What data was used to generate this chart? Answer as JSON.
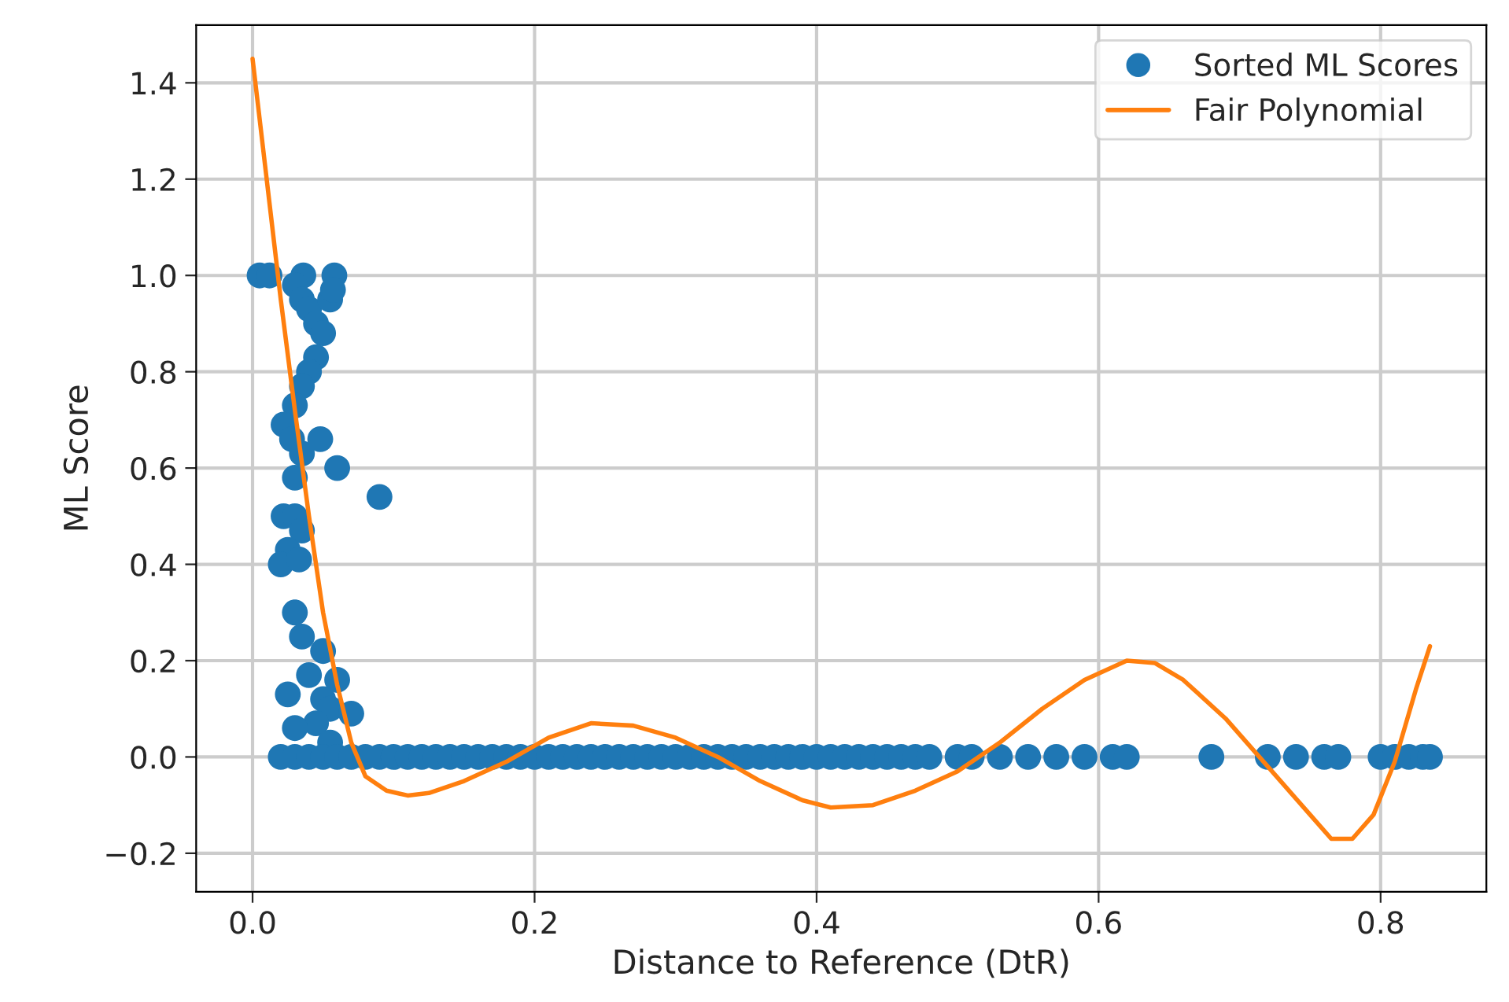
{
  "chart_data": {
    "type": "scatter",
    "xlabel": "Distance to Reference (DtR)",
    "ylabel": "ML Score",
    "xlim": [
      -0.04,
      0.875
    ],
    "ylim": [
      -0.28,
      1.52
    ],
    "xticks": [
      {
        "value": 0,
        "label": "0.0"
      },
      0.2,
      0.4,
      0.6,
      0.8
    ],
    "yticks": [
      {
        "value": -0.2,
        "label": "−0.2"
      },
      {
        "value": 0,
        "label": "0.0"
      },
      0.2,
      0.4,
      0.6,
      0.8,
      {
        "value": 1,
        "label": "1.0"
      },
      1.2,
      1.4
    ],
    "grid": true,
    "legend": "top right",
    "series": [
      {
        "name": "Sorted ML Scores",
        "color": "#1f77b4",
        "marker": "circle",
        "x": [
          0.005,
          0.012,
          0.036,
          0.058,
          0.03,
          0.035,
          0.04,
          0.045,
          0.05,
          0.055,
          0.057,
          0.045,
          0.04,
          0.035,
          0.03,
          0.022,
          0.028,
          0.035,
          0.048,
          0.06,
          0.09,
          0.03,
          0.022,
          0.03,
          0.035,
          0.025,
          0.02,
          0.033,
          0.03,
          0.035,
          0.05,
          0.06,
          0.04,
          0.05,
          0.055,
          0.07,
          0.045,
          0.03,
          0.025,
          0.055,
          0.02,
          0.03,
          0.04,
          0.05,
          0.06,
          0.07,
          0.08,
          0.09,
          0.1,
          0.11,
          0.12,
          0.13,
          0.14,
          0.15,
          0.16,
          0.17,
          0.18,
          0.19,
          0.2,
          0.21,
          0.22,
          0.23,
          0.24,
          0.25,
          0.26,
          0.27,
          0.28,
          0.29,
          0.3,
          0.31,
          0.32,
          0.33,
          0.34,
          0.35,
          0.36,
          0.37,
          0.38,
          0.39,
          0.4,
          0.41,
          0.42,
          0.43,
          0.44,
          0.45,
          0.46,
          0.47,
          0.48,
          0.5,
          0.51,
          0.53,
          0.55,
          0.57,
          0.59,
          0.61,
          0.62,
          0.68,
          0.72,
          0.74,
          0.76,
          0.77,
          0.8,
          0.81,
          0.82,
          0.83,
          0.835
        ],
        "values": [
          1.0,
          1.0,
          1.0,
          1.0,
          0.98,
          0.95,
          0.93,
          0.9,
          0.88,
          0.95,
          0.97,
          0.83,
          0.8,
          0.77,
          0.73,
          0.69,
          0.66,
          0.63,
          0.66,
          0.6,
          0.54,
          0.58,
          0.5,
          0.5,
          0.47,
          0.43,
          0.4,
          0.41,
          0.3,
          0.25,
          0.22,
          0.16,
          0.17,
          0.12,
          0.1,
          0.09,
          0.07,
          0.06,
          0.13,
          0.03,
          0.0,
          0.0,
          0.0,
          0.0,
          0.0,
          0.0,
          0.0,
          0.0,
          0.0,
          0.0,
          0.0,
          0.0,
          0.0,
          0.0,
          0.0,
          0.0,
          0.0,
          0.0,
          0.0,
          0.0,
          0.0,
          0.0,
          0.0,
          0.0,
          0.0,
          0.0,
          0.0,
          0.0,
          0.0,
          0.0,
          0.0,
          0.0,
          0.0,
          0.0,
          0.0,
          0.0,
          0.0,
          0.0,
          0.0,
          0.0,
          0.0,
          0.0,
          0.0,
          0.0,
          0.0,
          0.0,
          0.0,
          0.0,
          0.0,
          0.0,
          0.0,
          0.0,
          0.0,
          0.0,
          0.0,
          0.0,
          0.0,
          0.0,
          0.0,
          0.0,
          0.0,
          0.0,
          0.0,
          0.0,
          0.0
        ]
      },
      {
        "name": "Fair Polynomial",
        "type": "line",
        "color": "#ff7f0e",
        "line_style": "solid",
        "marker": "none",
        "x": [
          0.0,
          0.01,
          0.02,
          0.03,
          0.04,
          0.05,
          0.06,
          0.07,
          0.08,
          0.095,
          0.11,
          0.125,
          0.15,
          0.18,
          0.21,
          0.24,
          0.27,
          0.3,
          0.33,
          0.36,
          0.39,
          0.41,
          0.44,
          0.47,
          0.5,
          0.53,
          0.56,
          0.59,
          0.62,
          0.64,
          0.66,
          0.69,
          0.72,
          0.75,
          0.765,
          0.78,
          0.795,
          0.81,
          0.825,
          0.835
        ],
        "values": [
          1.45,
          1.2,
          0.95,
          0.72,
          0.5,
          0.3,
          0.15,
          0.03,
          -0.04,
          -0.07,
          -0.08,
          -0.075,
          -0.05,
          -0.01,
          0.04,
          0.07,
          0.065,
          0.04,
          0.0,
          -0.05,
          -0.09,
          -0.105,
          -0.1,
          -0.07,
          -0.03,
          0.03,
          0.1,
          0.16,
          0.2,
          0.195,
          0.16,
          0.08,
          -0.02,
          -0.12,
          -0.17,
          -0.17,
          -0.12,
          -0.01,
          0.14,
          0.23
        ]
      }
    ]
  }
}
